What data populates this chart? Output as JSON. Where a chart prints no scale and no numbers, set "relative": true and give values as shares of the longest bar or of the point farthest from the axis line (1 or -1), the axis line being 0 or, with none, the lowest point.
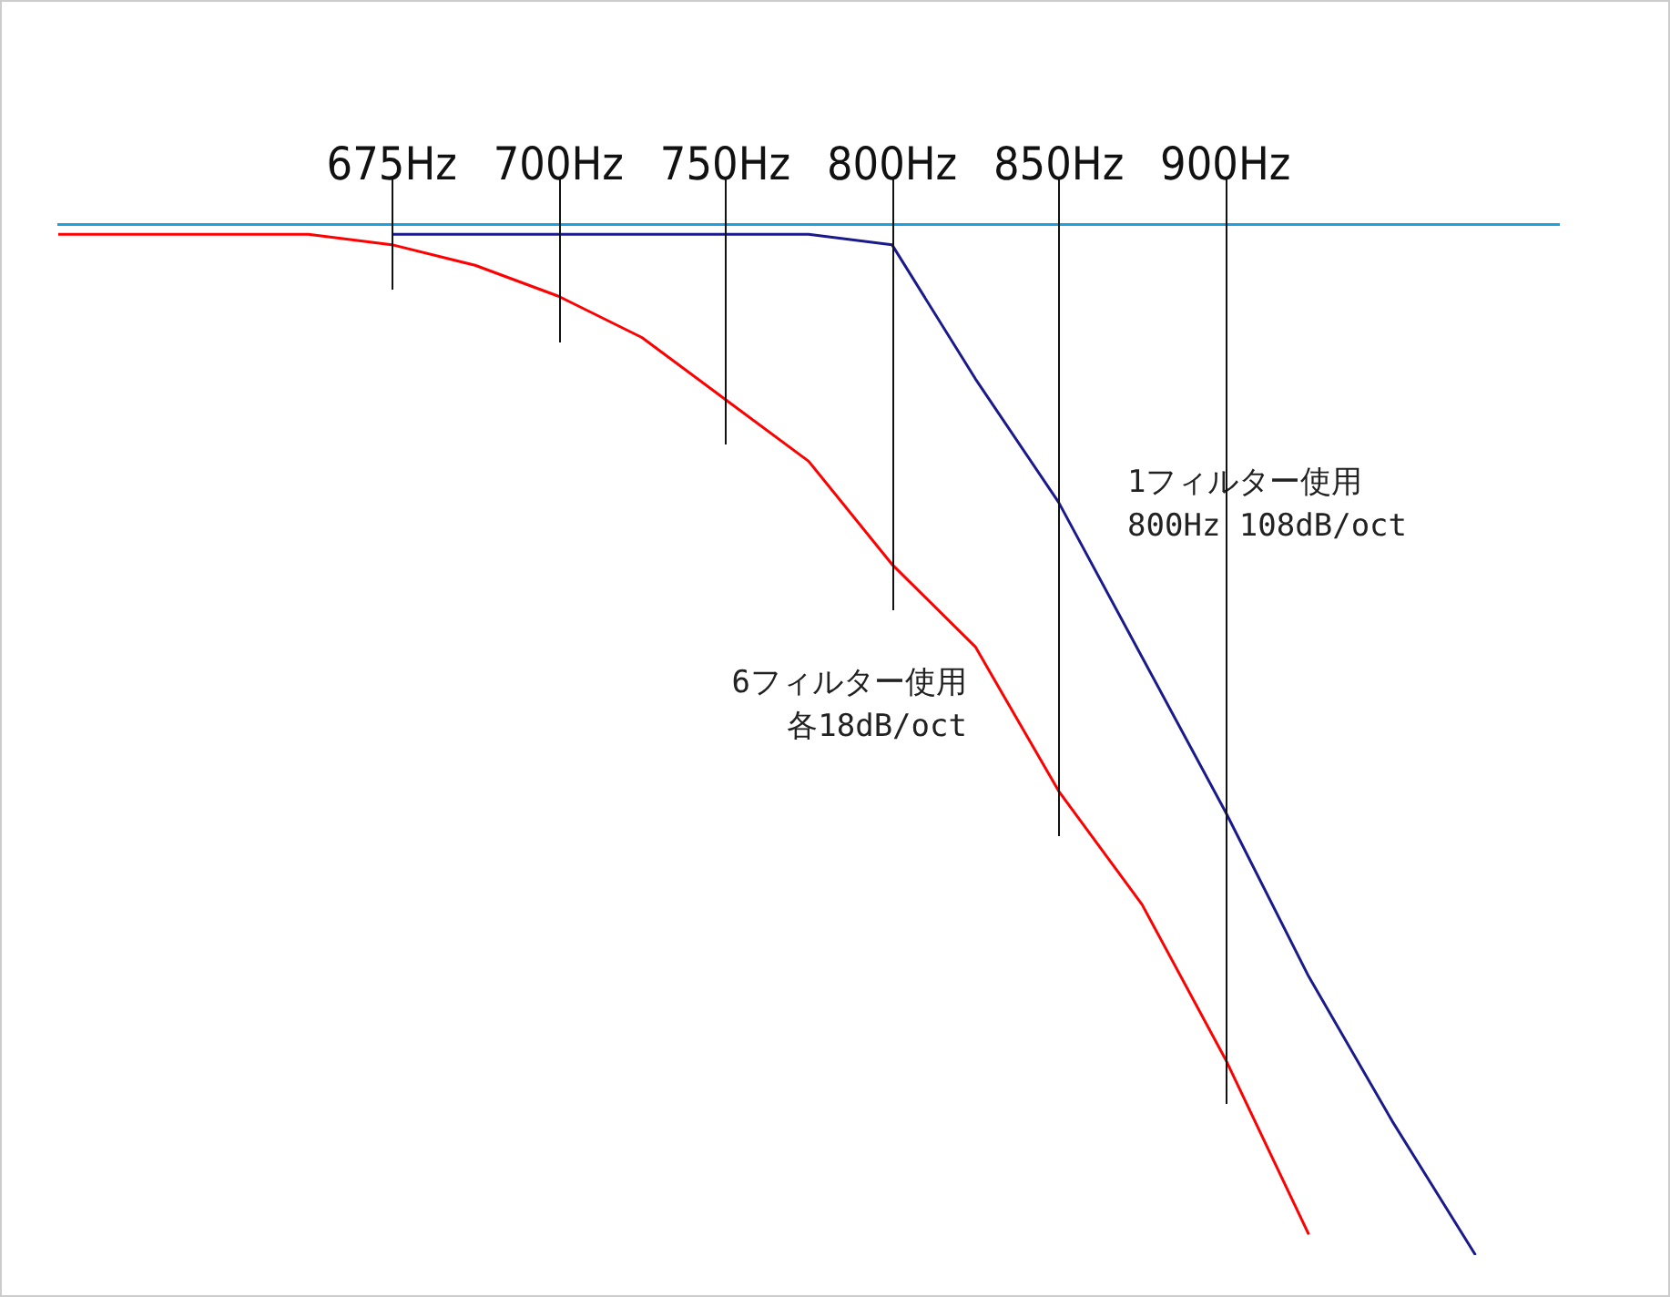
{
  "chart_data": {
    "type": "line",
    "relative": true,
    "categories": [
      null,
      null,
      null,
      null,
      "675Hz",
      null,
      "700Hz",
      null,
      "750Hz",
      null,
      "800Hz",
      null,
      "850Hz",
      null,
      "900Hz",
      null,
      null,
      null,
      null
    ],
    "series": [
      {
        "color": "#ff0000",
        "values": [
          -0.01,
          -0.01,
          -0.01,
          -0.01,
          -0.02,
          -0.04,
          -0.07,
          -0.11,
          -0.17,
          -0.23,
          -0.33,
          -0.41,
          -0.55,
          -0.66,
          -0.81,
          -0.98,
          null,
          null,
          null
        ]
      },
      {
        "color": "#1a1a8c",
        "values": [
          null,
          null,
          null,
          null,
          -0.01,
          -0.01,
          -0.01,
          -0.01,
          -0.01,
          -0.01,
          -0.02,
          -0.15,
          -0.27,
          -0.42,
          -0.57,
          -0.73,
          -0.87,
          -1,
          null
        ]
      }
    ],
    "annotations": [
      "1フィルター使用",
      "800Hz 108dB/oct",
      "6フィルター使用",
      "各18dB/oct"
    ],
    "marker": "none",
    "line_style": "solid",
    "legend": false
  }
}
